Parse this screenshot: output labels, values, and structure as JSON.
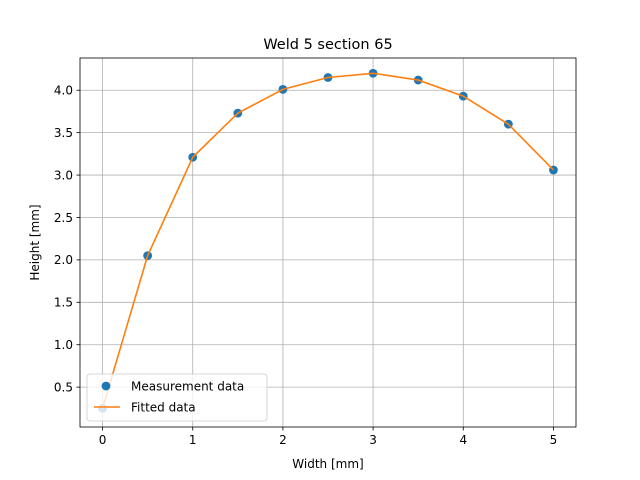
{
  "chart_data": {
    "type": "line",
    "title": "Weld 5 section 65",
    "xlabel": "Width [mm]",
    "ylabel": "Height [mm]",
    "xlim": [
      -0.25,
      5.25
    ],
    "ylim": [
      0.03,
      4.38
    ],
    "xticks": [
      0,
      1,
      2,
      3,
      4,
      5
    ],
    "xtick_labels": [
      "0",
      "1",
      "2",
      "3",
      "4",
      "5"
    ],
    "yticks": [
      0.5,
      1.0,
      1.5,
      2.0,
      2.5,
      3.0,
      3.5,
      4.0
    ],
    "ytick_labels": [
      "0.5",
      "1.0",
      "1.5",
      "2.0",
      "2.5",
      "3.0",
      "3.5",
      "4.0"
    ],
    "grid": true,
    "legend_position": "lower-left",
    "series": [
      {
        "name": "Measurement data",
        "style": "markers",
        "color": "#1f77b4",
        "x": [
          0,
          0.5,
          1.0,
          1.5,
          2.0,
          2.5,
          3.0,
          3.5,
          4.0,
          4.5,
          5.0
        ],
        "y": [
          0.25,
          2.05,
          3.21,
          3.73,
          4.01,
          4.15,
          4.2,
          4.12,
          3.93,
          3.6,
          3.06
        ]
      },
      {
        "name": "Fitted data",
        "style": "line",
        "color": "#ff7f0e",
        "x": [
          0,
          0.5,
          1.0,
          1.5,
          2.0,
          2.5,
          3.0,
          3.5,
          4.0,
          4.5,
          5.0
        ],
        "y": [
          0.25,
          2.05,
          3.21,
          3.73,
          4.01,
          4.15,
          4.2,
          4.12,
          3.93,
          3.6,
          3.06
        ]
      }
    ]
  }
}
